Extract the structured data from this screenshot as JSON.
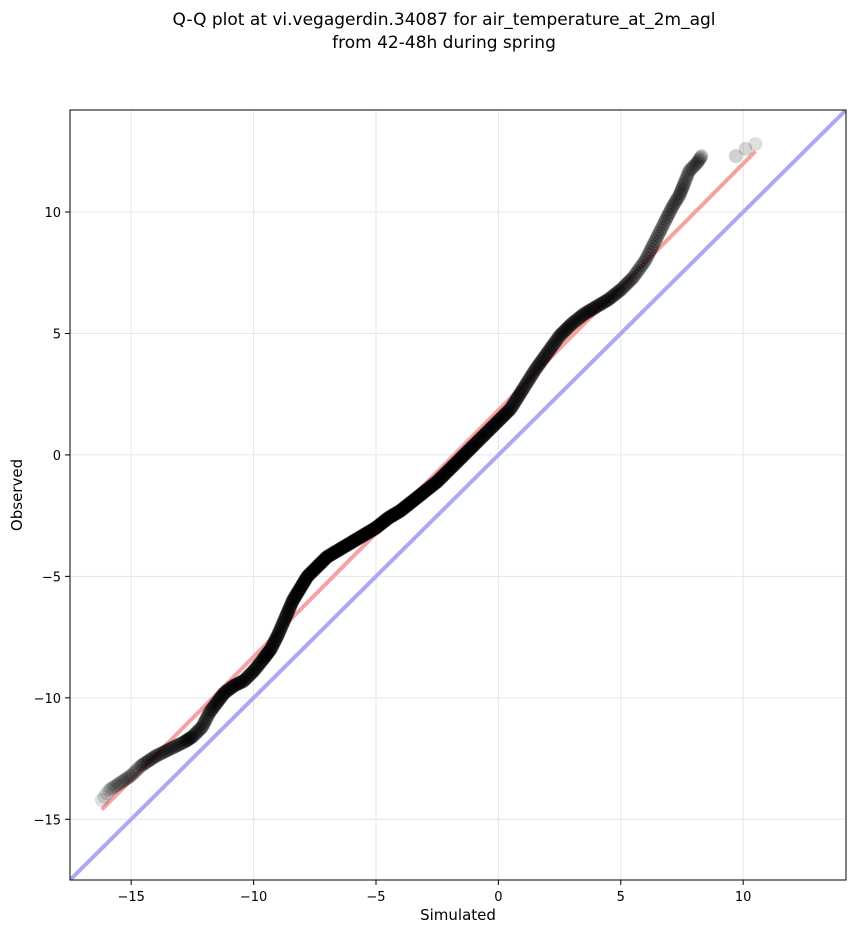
{
  "chart_data": {
    "type": "scatter",
    "title": "Q-Q plot at vi.vegagerdin.34087 for air_temperature_at_2m_agl",
    "subtitle": "from 42-48h during spring",
    "xlabel": "Simulated",
    "ylabel": "Observed",
    "xlim": [
      -17.5,
      14.2
    ],
    "ylim": [
      -17.5,
      14.2
    ],
    "xticks": [
      -15,
      -10,
      -5,
      0,
      5,
      10
    ],
    "yticks": [
      -15,
      -10,
      -5,
      0,
      5,
      10
    ],
    "xtick_labels": [
      "−15",
      "−10",
      "−5",
      "0",
      "5",
      "10"
    ],
    "ytick_labels": [
      "−15",
      "−10",
      "−5",
      "0",
      "5",
      "10"
    ],
    "grid": true,
    "series": [
      {
        "role": "quantiles",
        "color": "#000000",
        "points": [
          [
            -16.2,
            -14.2
          ],
          [
            -15.9,
            -13.8
          ],
          [
            -15.6,
            -13.6
          ],
          [
            -15.3,
            -13.4
          ],
          [
            -15.0,
            -13.2
          ],
          [
            -14.6,
            -12.8
          ],
          [
            -14.3,
            -12.6
          ],
          [
            -14.0,
            -12.4
          ],
          [
            -13.6,
            -12.2
          ],
          [
            -13.2,
            -12.0
          ],
          [
            -12.8,
            -11.8
          ],
          [
            -12.5,
            -11.6
          ],
          [
            -12.1,
            -11.2
          ],
          [
            -11.8,
            -10.6
          ],
          [
            -11.5,
            -10.2
          ],
          [
            -11.2,
            -9.8
          ],
          [
            -10.8,
            -9.5
          ],
          [
            -10.4,
            -9.3
          ],
          [
            -10.0,
            -8.9
          ],
          [
            -9.6,
            -8.4
          ],
          [
            -9.3,
            -8.0
          ],
          [
            -9.0,
            -7.4
          ],
          [
            -8.7,
            -6.7
          ],
          [
            -8.4,
            -6.0
          ],
          [
            -8.1,
            -5.5
          ],
          [
            -7.8,
            -5.0
          ],
          [
            -7.4,
            -4.6
          ],
          [
            -7.0,
            -4.2
          ],
          [
            -6.5,
            -3.9
          ],
          [
            -6.0,
            -3.6
          ],
          [
            -5.5,
            -3.3
          ],
          [
            -5.0,
            -3.0
          ],
          [
            -4.5,
            -2.6
          ],
          [
            -4.0,
            -2.3
          ],
          [
            -3.5,
            -1.9
          ],
          [
            -3.0,
            -1.5
          ],
          [
            -2.5,
            -1.1
          ],
          [
            -2.0,
            -0.6
          ],
          [
            -1.5,
            -0.1
          ],
          [
            -1.0,
            0.4
          ],
          [
            -0.5,
            0.9
          ],
          [
            0.0,
            1.4
          ],
          [
            0.5,
            1.9
          ],
          [
            1.0,
            2.7
          ],
          [
            1.5,
            3.5
          ],
          [
            2.0,
            4.2
          ],
          [
            2.5,
            4.9
          ],
          [
            3.0,
            5.4
          ],
          [
            3.5,
            5.8
          ],
          [
            4.0,
            6.1
          ],
          [
            4.5,
            6.4
          ],
          [
            5.0,
            6.8
          ],
          [
            5.5,
            7.3
          ],
          [
            6.0,
            8.0
          ],
          [
            6.4,
            8.8
          ],
          [
            6.8,
            9.6
          ],
          [
            7.1,
            10.2
          ],
          [
            7.4,
            10.7
          ],
          [
            7.6,
            11.2
          ],
          [
            7.8,
            11.7
          ],
          [
            8.1,
            12.0
          ],
          [
            8.3,
            12.3
          ],
          [
            9.7,
            12.3
          ],
          [
            10.1,
            12.6
          ],
          [
            10.5,
            12.8
          ]
        ]
      },
      {
        "role": "fit-line",
        "color": "#f7a1a1",
        "from": [
          -16.2,
          -14.6
        ],
        "to": [
          10.5,
          12.5
        ]
      },
      {
        "role": "identity-line",
        "color": "#a9a9f5",
        "from": [
          -17.5,
          -17.5
        ],
        "to": [
          14.2,
          14.2
        ]
      }
    ]
  }
}
